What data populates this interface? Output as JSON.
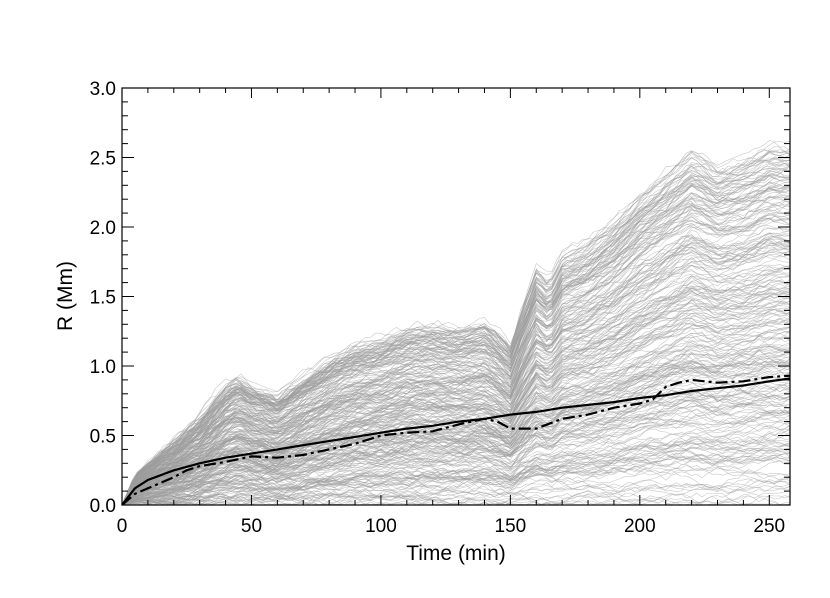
{
  "chart_data": {
    "type": "line",
    "title": "",
    "xlabel": "Time (min)",
    "ylabel": "R (Mm)",
    "xlim": [
      0,
      258
    ],
    "ylim": [
      0,
      3.0
    ],
    "x_ticks": [
      0,
      50,
      100,
      150,
      200,
      250
    ],
    "y_ticks": [
      0.0,
      0.5,
      1.0,
      1.5,
      2.0,
      2.5,
      3.0
    ],
    "x_tick_labels": [
      "0",
      "50",
      "100",
      "150",
      "200",
      "250"
    ],
    "y_tick_labels": [
      "0.0",
      "0.5",
      "1.0",
      "1.5",
      "2.0",
      "2.5",
      "3.0"
    ],
    "grid": false,
    "legend": "none",
    "colors": {
      "ensemble": "#9c9c9c",
      "fit": "#000000",
      "mean": "#000000",
      "axes": "#000000"
    },
    "ensemble": {
      "description_count": 300,
      "upper_envelope": {
        "x": [
          0,
          5,
          10,
          20,
          30,
          40,
          45,
          50,
          60,
          70,
          80,
          90,
          100,
          110,
          120,
          130,
          140,
          145,
          150,
          155,
          160,
          165,
          170,
          180,
          190,
          200,
          210,
          220,
          230,
          240,
          250,
          258
        ],
        "y": [
          0,
          0.22,
          0.3,
          0.45,
          0.62,
          0.85,
          0.92,
          0.85,
          0.78,
          0.92,
          1.05,
          1.15,
          1.2,
          1.28,
          1.3,
          1.28,
          1.32,
          1.25,
          1.15,
          1.45,
          1.7,
          1.6,
          1.8,
          1.9,
          2.05,
          2.25,
          2.4,
          2.55,
          2.45,
          2.5,
          2.6,
          2.6
        ]
      }
    },
    "series": [
      {
        "style": "solid",
        "x": [
          0,
          5,
          10,
          20,
          30,
          40,
          50,
          60,
          70,
          80,
          90,
          100,
          110,
          120,
          130,
          140,
          150,
          160,
          170,
          180,
          190,
          200,
          210,
          220,
          230,
          240,
          250,
          258
        ],
        "y": [
          0,
          0.12,
          0.18,
          0.25,
          0.3,
          0.34,
          0.37,
          0.4,
          0.43,
          0.46,
          0.49,
          0.52,
          0.55,
          0.57,
          0.6,
          0.62,
          0.65,
          0.67,
          0.7,
          0.72,
          0.74,
          0.77,
          0.79,
          0.82,
          0.84,
          0.86,
          0.89,
          0.91
        ]
      },
      {
        "style": "dash-dot",
        "x": [
          0,
          5,
          10,
          15,
          20,
          25,
          30,
          40,
          50,
          60,
          70,
          80,
          90,
          100,
          110,
          120,
          130,
          140,
          145,
          150,
          160,
          170,
          180,
          190,
          200,
          205,
          210,
          215,
          220,
          230,
          240,
          250,
          258
        ],
        "y": [
          0,
          0.08,
          0.12,
          0.16,
          0.2,
          0.25,
          0.28,
          0.31,
          0.35,
          0.34,
          0.36,
          0.4,
          0.44,
          0.5,
          0.52,
          0.53,
          0.58,
          0.62,
          0.6,
          0.55,
          0.55,
          0.62,
          0.65,
          0.7,
          0.73,
          0.76,
          0.85,
          0.88,
          0.9,
          0.88,
          0.89,
          0.92,
          0.93
        ]
      }
    ]
  }
}
